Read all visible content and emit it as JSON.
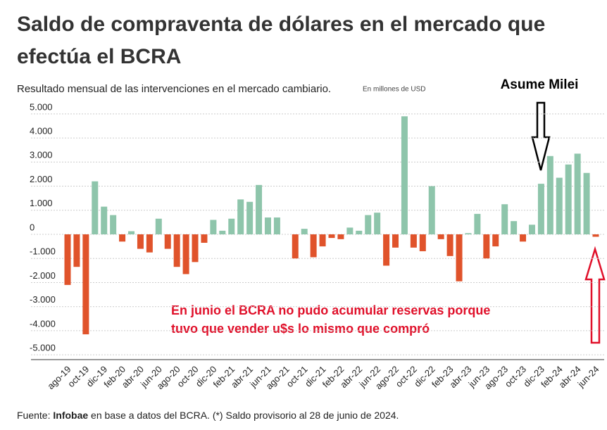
{
  "chart_data": {
    "type": "bar",
    "title": "Saldo de compraventa de dólares en el mercado que efectúa el BCRA",
    "subtitle": "Resultado  mensual de las intervenciones en el mercado cambiario.",
    "unit_note": "En millones de USD",
    "annotations": [
      "Asume Milei",
      "En junio el BCRA no pudo acumular reservas porque",
      "tuvo que vender u$s lo mismo que compró"
    ],
    "source": [
      "Fuente: ",
      "Infobae",
      " en base a datos del BCRA.  (*) Saldo provisorio al 28 de junio de 2024."
    ],
    "categories": [
      "ago-19",
      null,
      "oct-19",
      null,
      "dic-19",
      null,
      "feb-20",
      null,
      "abr-20",
      null,
      "jun-20",
      null,
      "ago-20",
      null,
      "oct-20",
      null,
      "dic-20",
      null,
      "feb-21",
      null,
      "abr-21",
      null,
      "jun-21",
      null,
      "ago-21",
      null,
      "oct-21",
      null,
      "dic-21",
      null,
      "feb-22",
      null,
      "abr-22",
      null,
      "jun-22",
      null,
      "ago-22",
      null,
      "oct-22",
      null,
      "dic-22",
      null,
      "feb-23",
      null,
      "abr-23",
      null,
      "jun-23",
      null,
      "ago-23",
      null,
      "oct-23",
      null,
      "dic-23",
      null,
      "feb-24",
      null,
      "abr-24",
      null,
      "jun-24"
    ],
    "values": [
      -2100,
      -1350,
      -4150,
      2200,
      1150,
      800,
      -300,
      130,
      -600,
      -750,
      650,
      -600,
      -1350,
      -1650,
      -1150,
      -350,
      600,
      150,
      650,
      1450,
      1350,
      2050,
      700,
      700,
      0,
      -1000,
      230,
      -950,
      -500,
      -150,
      -200,
      280,
      150,
      800,
      900,
      -1300,
      -550,
      4900,
      -550,
      -700,
      2000,
      -200,
      -900,
      -1950,
      50,
      850,
      -1000,
      -500,
      1250,
      550,
      -300,
      400,
      2100,
      3250,
      2350,
      2900,
      3350,
      2550,
      -100
    ],
    "positive_color": "#8ec5ab",
    "negative_color": "#e0532b",
    "ylim": [
      -5200,
      5200
    ],
    "yticks": [
      {
        "value": 5000,
        "label": "5.000"
      },
      {
        "value": 4000,
        "label": "4.000"
      },
      {
        "value": 3000,
        "label": "3.000"
      },
      {
        "value": 2000,
        "label": "2.000"
      },
      {
        "value": 1000,
        "label": "1.000"
      },
      0,
      {
        "value": -1000,
        "label": "-1.000"
      },
      {
        "value": -2000,
        "label": "-2.000"
      },
      {
        "value": -3000,
        "label": "-3.000"
      },
      {
        "value": -4000,
        "label": "-4.000"
      },
      {
        "value": -5000,
        "label": "-5.000"
      }
    ],
    "grid": true
  }
}
